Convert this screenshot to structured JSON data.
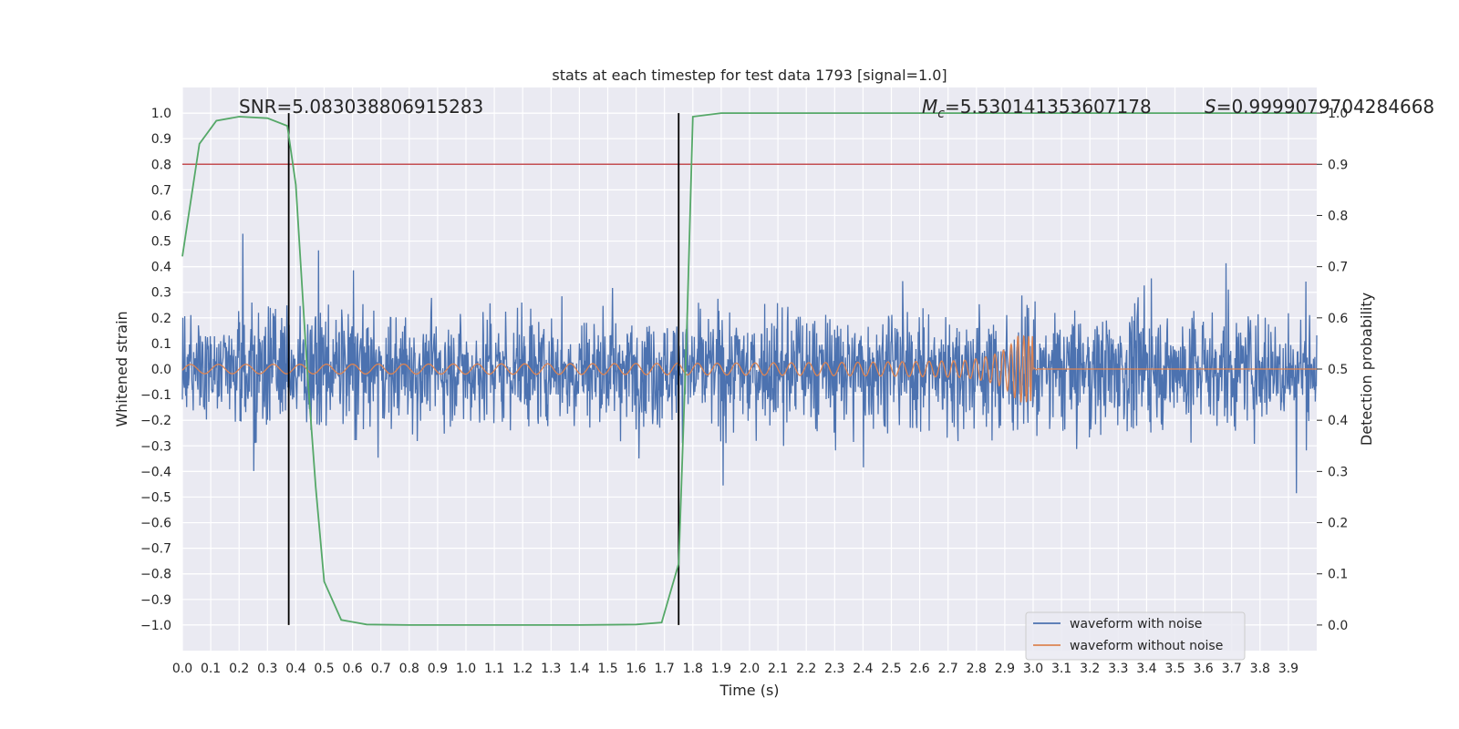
{
  "chart_data": {
    "type": "line",
    "title": "stats at each timestep for test data 1793 [signal=1.0]",
    "xlabel": "Time (s)",
    "ylabel": "Whitened strain",
    "y2label": "Detection probability",
    "xlim": [
      0.0,
      4.0
    ],
    "ylim": [
      -1.1,
      1.1
    ],
    "y2lim": [
      -0.05,
      1.05
    ],
    "x_ticks": [
      "0.0",
      "0.1",
      "0.2",
      "0.3",
      "0.4",
      "0.5",
      "0.6",
      "0.7",
      "0.8",
      "0.9",
      "1.0",
      "1.1",
      "1.2",
      "1.3",
      "1.4",
      "1.5",
      "1.6",
      "1.7",
      "1.8",
      "1.9",
      "2.0",
      "2.1",
      "2.2",
      "2.3",
      "2.4",
      "2.5",
      "2.6",
      "2.7",
      "2.8",
      "2.9",
      "3.0",
      "3.1",
      "3.2",
      "3.3",
      "3.4",
      "3.5",
      "3.6",
      "3.7",
      "3.8",
      "3.9"
    ],
    "y_ticks": [
      "1.0",
      "0.9",
      "0.8",
      "0.7",
      "0.6",
      "0.5",
      "0.4",
      "0.3",
      "0.2",
      "0.1",
      "0.0",
      "−0.1",
      "−0.2",
      "−0.3",
      "−0.4",
      "−0.5",
      "−0.6",
      "−0.7",
      "−0.8",
      "−0.9",
      "−1.0"
    ],
    "y2_ticks": [
      "1.0",
      "0.9",
      "0.8",
      "0.7",
      "0.6",
      "0.5",
      "0.4",
      "0.3",
      "0.2",
      "0.1",
      "0.0"
    ],
    "grid": true,
    "legend_position": "lower-right",
    "annotations": {
      "snr": "SNR=5.083038806915283",
      "mc_symbol": "M",
      "mc_sub": "c",
      "mc_value": "=5.530141353607178",
      "s_symbol": "S",
      "s_value": "=0.9999079704284668"
    },
    "series": [
      {
        "name": "waveform with noise",
        "color": "#4c72b0",
        "style": "noise",
        "amplitude_range": [
          -0.95,
          0.95
        ]
      },
      {
        "name": "waveform without noise",
        "color": "#dd8452",
        "style": "chirp",
        "x_end": 3.0,
        "peak_amplitude": 0.13
      },
      {
        "name": "detection probability",
        "color": "#55a868",
        "axis": "right",
        "x": [
          0.0,
          0.06,
          0.12,
          0.2,
          0.3,
          0.37,
          0.4,
          0.44,
          0.47,
          0.5,
          0.56,
          0.65,
          0.8,
          1.0,
          1.4,
          1.6,
          1.69,
          1.75,
          1.78,
          1.8,
          1.9,
          2.5,
          3.0,
          3.5,
          4.0
        ],
        "y": [
          0.72,
          0.94,
          0.985,
          0.993,
          0.99,
          0.975,
          0.86,
          0.5,
          0.27,
          0.085,
          0.01,
          0.001,
          0.0,
          0.0,
          0.0,
          0.001,
          0.005,
          0.12,
          0.6,
          0.993,
          1.0,
          1.0,
          1.0,
          1.0,
          1.0
        ]
      }
    ],
    "threshold": {
      "y2": 0.9,
      "color": "#c44e52"
    },
    "vertical_markers": [
      {
        "x": 0.375,
        "color": "#000000"
      },
      {
        "x": 1.75,
        "color": "#000000"
      }
    ]
  }
}
